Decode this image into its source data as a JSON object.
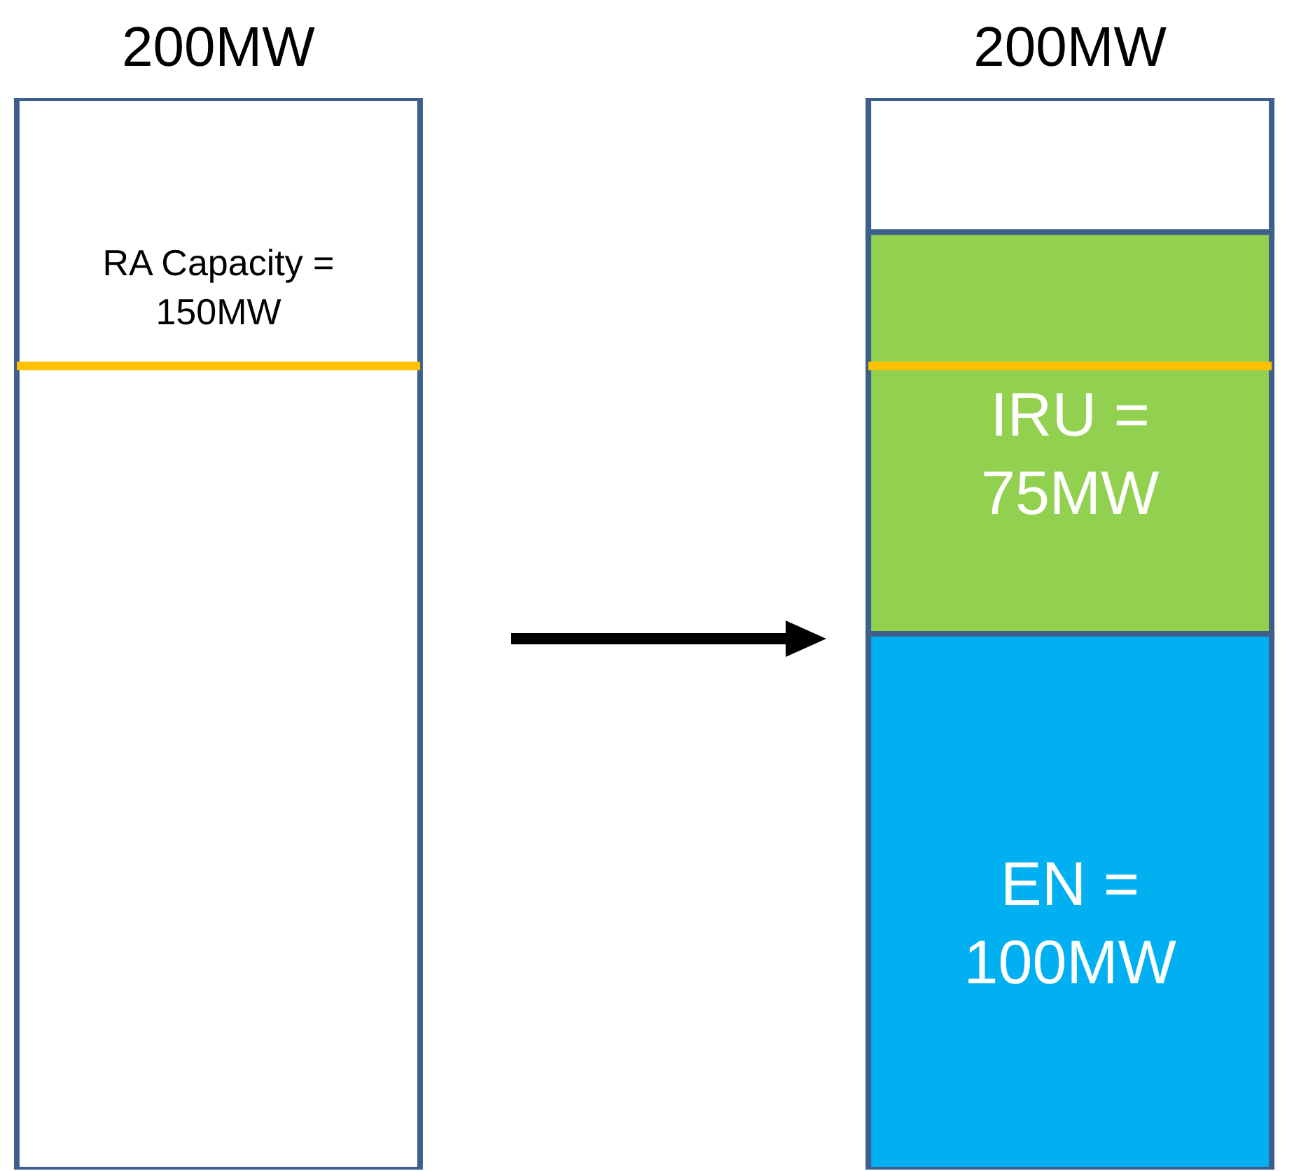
{
  "chart_data": {
    "type": "bar",
    "categories": [
      null,
      null
    ],
    "stacked": true,
    "tick_labels": false,
    "series": [
      {
        "color": "#00b0f0",
        "values": [
          null,
          100
        ],
        "value_labels": [
          null,
          "EN = 100MW"
        ]
      },
      {
        "color": "#92d050",
        "values": [
          null,
          75
        ],
        "value_labels": [
          null,
          "IRU = 75MW"
        ]
      },
      {
        "color": "#ffffff",
        "values": [
          200,
          25
        ]
      }
    ],
    "totals": [
      "200MW",
      "200MW"
    ],
    "ref_lines": [
      {
        "axis": "y",
        "value": 150,
        "label": "RA Capacity = 150MW",
        "color": "#ffc000"
      }
    ]
  }
}
